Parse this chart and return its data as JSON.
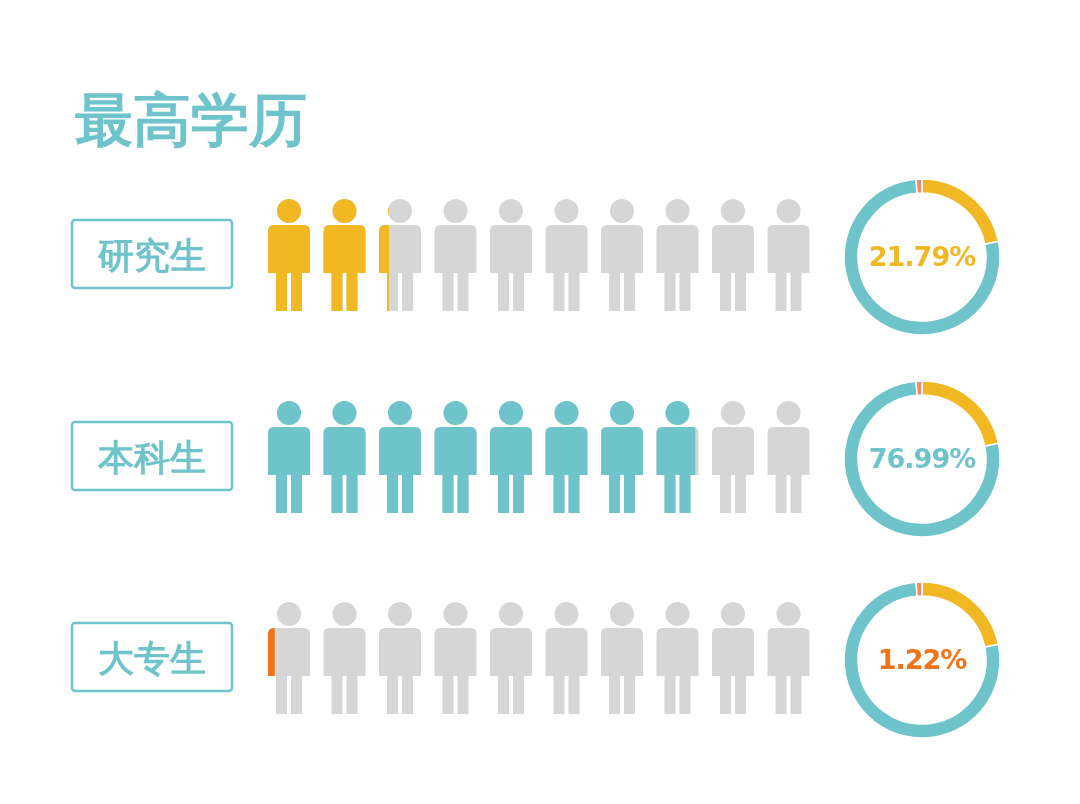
{
  "chart_data": [
    {
      "type": "bar",
      "orientation": "horizontal",
      "title": "最高学历",
      "categories": [
        "研究生",
        "本科生",
        "大专生"
      ],
      "values": [
        21.79,
        76.99,
        1.22
      ],
      "colors": [
        "#f2b824",
        "#6fc4cc",
        "#f07417"
      ],
      "value_labels": [
        "21.79%",
        "76.99%",
        "1.22%"
      ],
      "tick_labels": "y"
    },
    {
      "type": "donut",
      "categories": [
        null,
        null,
        null
      ],
      "values": [
        21.79,
        76.99,
        1.22
      ],
      "colors": [
        "#f2b824",
        "#6fc4cc",
        "#ec8a70"
      ]
    },
    {
      "type": "donut",
      "categories": [
        null,
        null,
        null
      ],
      "values": [
        21.79,
        76.99,
        1.22
      ],
      "colors": [
        "#f2b824",
        "#6fc4cc",
        "#ec8a70"
      ]
    },
    {
      "type": "donut",
      "categories": [
        null,
        null,
        null
      ],
      "values": [
        21.79,
        76.99,
        1.22
      ],
      "colors": [
        "#f2b824",
        "#6fc4cc",
        "#ec8a70"
      ]
    }
  ]
}
